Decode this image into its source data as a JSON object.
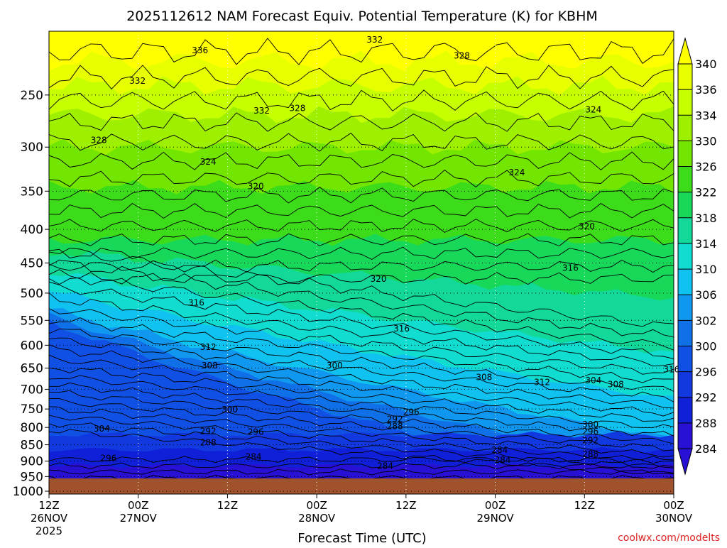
{
  "chart_data": {
    "type": "heatmap",
    "title": "2025112612 NAM Forecast Equiv. Potential Temperature (K) for KBHM",
    "xlabel": "Forecast Time (UTC)",
    "ylabel": "",
    "credit": "coolwx.com/modelts",
    "x_ticks": [
      {
        "t": 0,
        "hour": "12Z",
        "date": "26NOV",
        "year": "2025"
      },
      {
        "t": 12,
        "hour": "00Z",
        "date": "27NOV",
        "year": ""
      },
      {
        "t": 24,
        "hour": "12Z",
        "date": "",
        "year": ""
      },
      {
        "t": 36,
        "hour": "00Z",
        "date": "28NOV",
        "year": ""
      },
      {
        "t": 48,
        "hour": "12Z",
        "date": "",
        "year": ""
      },
      {
        "t": 60,
        "hour": "00Z",
        "date": "29NOV",
        "year": ""
      },
      {
        "t": 72,
        "hour": "12Z",
        "date": "",
        "year": ""
      },
      {
        "t": 84,
        "hour": "00Z",
        "date": "30NOV",
        "year": ""
      }
    ],
    "xlim": [
      0,
      84
    ],
    "y_ticks": [
      250,
      300,
      350,
      400,
      450,
      500,
      550,
      600,
      650,
      700,
      750,
      800,
      850,
      900,
      950,
      1000
    ],
    "ylim": [
      1010,
      200
    ],
    "y_scale": "log",
    "colorbar": {
      "labels": [
        340,
        336,
        334,
        330,
        326,
        322,
        318,
        314,
        310,
        306,
        302,
        300,
        296,
        292,
        288,
        284
      ],
      "colors": [
        "#ffff00",
        "#e8ff00",
        "#c6ff00",
        "#9ef000",
        "#72e600",
        "#3ddc1a",
        "#18d85a",
        "#12d89a",
        "#10dcd0",
        "#10c2f0",
        "#1098f0",
        "#1070e8",
        "#1050e4",
        "#1238e0",
        "#1020d8",
        "#2810d4"
      ]
    },
    "ground_color": "#a0522d",
    "contour_labels": [
      {
        "value": "336",
        "t": 20.3,
        "p": 214
      },
      {
        "value": "332",
        "t": 43.8,
        "p": 206
      },
      {
        "value": "332",
        "t": 11.9,
        "p": 238
      },
      {
        "value": "332",
        "t": 28.6,
        "p": 264
      },
      {
        "value": "328",
        "t": 55.5,
        "p": 218
      },
      {
        "value": "328",
        "t": 33.4,
        "p": 262
      },
      {
        "value": "328",
        "t": 6.7,
        "p": 293
      },
      {
        "value": "324",
        "t": 73.2,
        "p": 263
      },
      {
        "value": "324",
        "t": 21.4,
        "p": 316
      },
      {
        "value": "324",
        "t": 62.9,
        "p": 328
      },
      {
        "value": "320",
        "t": 27.8,
        "p": 344
      },
      {
        "value": "320",
        "t": 72.3,
        "p": 396
      },
      {
        "value": "320",
        "t": 44.3,
        "p": 476
      },
      {
        "value": "316",
        "t": 70.1,
        "p": 458
      },
      {
        "value": "316",
        "t": 19.8,
        "p": 517
      },
      {
        "value": "316",
        "t": 47.4,
        "p": 566
      },
      {
        "value": "316",
        "t": 83.7,
        "p": 653
      },
      {
        "value": "312",
        "t": 21.4,
        "p": 604
      },
      {
        "value": "312",
        "t": 66.3,
        "p": 683
      },
      {
        "value": "308",
        "t": 21.6,
        "p": 644
      },
      {
        "value": "308",
        "t": 58.5,
        "p": 671
      },
      {
        "value": "308",
        "t": 76.2,
        "p": 688
      },
      {
        "value": "304",
        "t": 73.2,
        "p": 679
      },
      {
        "value": "304",
        "t": 7.1,
        "p": 804
      },
      {
        "value": "300",
        "t": 38.4,
        "p": 644
      },
      {
        "value": "300",
        "t": 24.3,
        "p": 752
      },
      {
        "value": "300",
        "t": 72.8,
        "p": 792
      },
      {
        "value": "296",
        "t": 48.7,
        "p": 758
      },
      {
        "value": "296",
        "t": 27.8,
        "p": 813
      },
      {
        "value": "296",
        "t": 72.8,
        "p": 812
      },
      {
        "value": "296",
        "t": 8.0,
        "p": 891
      },
      {
        "value": "292",
        "t": 46.5,
        "p": 777
      },
      {
        "value": "292",
        "t": 21.4,
        "p": 811
      },
      {
        "value": "292",
        "t": 72.8,
        "p": 837
      },
      {
        "value": "288",
        "t": 46.5,
        "p": 797
      },
      {
        "value": "288",
        "t": 21.4,
        "p": 844
      },
      {
        "value": "288",
        "t": 72.8,
        "p": 878
      },
      {
        "value": "284",
        "t": 27.5,
        "p": 886
      },
      {
        "value": "284",
        "t": 60.6,
        "p": 866
      },
      {
        "value": "284",
        "t": 61.0,
        "p": 896
      },
      {
        "value": "284",
        "t": 45.2,
        "p": 916
      }
    ]
  }
}
